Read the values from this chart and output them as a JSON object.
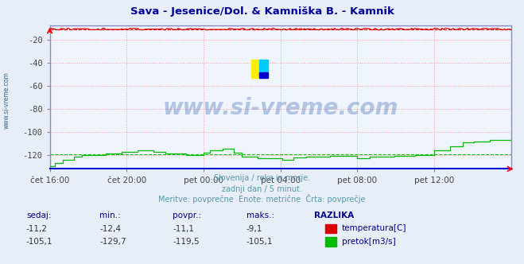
{
  "title": "Sava - Jesenice/Dol. & Kamniška B. - Kamnik",
  "title_color": "#000099",
  "bg_color": "#e8eef8",
  "plot_bg_color": "#f0f4fc",
  "grid_color": "#ff9999",
  "grid_style": ":",
  "ylim": [
    -132,
    -7
  ],
  "yticks": [
    -20,
    -40,
    -60,
    -80,
    -100,
    -120
  ],
  "x_labels": [
    "čet 16:00",
    "čet 20:00",
    "pet 00:00",
    "pet 04:00",
    "pet 08:00",
    "pet 12:00"
  ],
  "x_positions": [
    0,
    48,
    96,
    144,
    192,
    240
  ],
  "total_points": 289,
  "temp_avg": -11.1,
  "flow_avg": -119.5,
  "subtitle_lines": [
    "Slovenija / reke in morje.",
    "zadnji dan / 5 minut.",
    "Meritve: povprečne  Enote: metrične  Črta: povprečje"
  ],
  "subtitle_color": "#5599aa",
  "legend_label_color": "#000088",
  "temp_color": "#dd0000",
  "flow_color": "#00bb00",
  "watermark": "www.si-vreme.com",
  "watermark_color": "#2255aa",
  "axis_border_color": "#8888cc",
  "bottom_border_color": "#0000cc",
  "bottom_labels": [
    "sedaj:",
    "min.:",
    "povpr.:",
    "maks.:"
  ],
  "temp_row": [
    "-11,2",
    "-12,4",
    "-11,1",
    "-9,1"
  ],
  "flow_row": [
    "-105,1",
    "-129,7",
    "-119,5",
    "-105,1"
  ],
  "razlika": "RAZLIKA",
  "yaxis_label": "www.si-vreme.com",
  "yaxis_label_color": "#336699"
}
